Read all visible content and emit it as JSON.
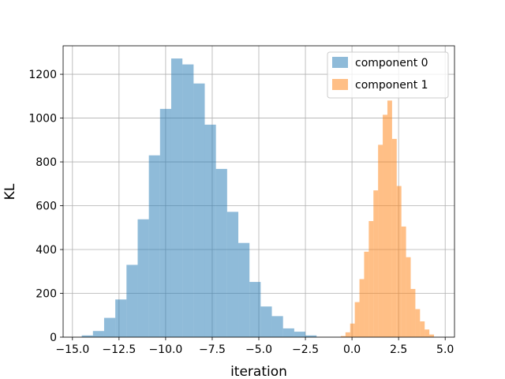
{
  "chart_data": {
    "type": "histogram",
    "title": "",
    "xlabel": "iteration",
    "ylabel": "KL",
    "xlim": [
      -15.5,
      5.5
    ],
    "ylim": [
      0,
      1330
    ],
    "x_ticks": [
      "−15.0",
      "−12.5",
      "−10.0",
      "−7.5",
      "−5.0",
      "−2.5",
      "0.0",
      "2.5",
      "5.0"
    ],
    "x_tick_values": [
      -15,
      -12.5,
      -10,
      -7.5,
      -5,
      -2.5,
      0,
      2.5,
      5
    ],
    "y_ticks": [
      "0",
      "200",
      "400",
      "600",
      "800",
      "1000",
      "1200"
    ],
    "y_tick_values": [
      0,
      200,
      400,
      600,
      800,
      1000,
      1200
    ],
    "grid": true,
    "legend_position": "top-right",
    "series": [
      {
        "name": "component 0",
        "color": "#1f77b4",
        "alpha": 0.5,
        "bin_edges": [
          -14.5,
          -13.9,
          -13.3,
          -12.7,
          -12.1,
          -11.5,
          -10.9,
          -10.3,
          -9.7,
          -9.1,
          -8.5,
          -7.9,
          -7.3,
          -6.7,
          -6.1,
          -5.5,
          -4.9,
          -4.3,
          -3.7,
          -3.1,
          -2.5,
          -1.9
        ],
        "counts": [
          8,
          28,
          88,
          172,
          330,
          538,
          830,
          1042,
          1272,
          1245,
          1158,
          970,
          768,
          572,
          430,
          252,
          140,
          96,
          40,
          25,
          8
        ]
      },
      {
        "name": "component 1",
        "color": "#ff7f0e",
        "alpha": 0.5,
        "bin_edges": [
          -0.6,
          -0.35,
          -0.1,
          0.15,
          0.4,
          0.65,
          0.9,
          1.15,
          1.4,
          1.65,
          1.9,
          2.15,
          2.4,
          2.65,
          2.9,
          3.15,
          3.4,
          3.65,
          3.9,
          4.15,
          4.4
        ],
        "counts": [
          5,
          22,
          62,
          160,
          265,
          390,
          530,
          670,
          878,
          1015,
          1080,
          905,
          690,
          505,
          365,
          220,
          128,
          72,
          35,
          12
        ]
      }
    ]
  }
}
